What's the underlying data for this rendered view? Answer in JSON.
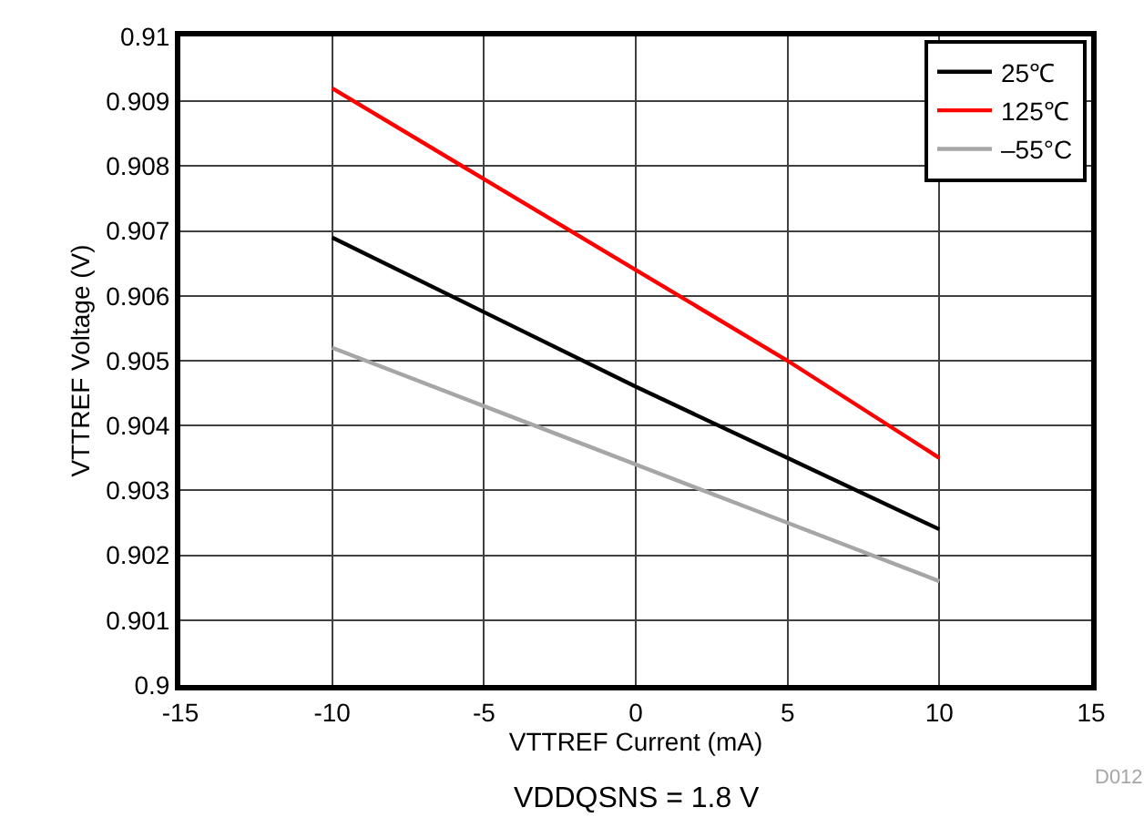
{
  "chart_data": {
    "type": "line",
    "xlabel": "VTTREF Current (mA)",
    "ylabel": "VTTREF Voltage (V)",
    "x": [
      -10,
      -5,
      0,
      5,
      10
    ],
    "series": [
      {
        "name": "25℃",
        "color": "#000000",
        "values": [
          0.9069,
          0.90575,
          0.9046,
          0.9035,
          0.9024
        ]
      },
      {
        "name": "125℃",
        "color": "#ff0000",
        "values": [
          0.9092,
          0.9078,
          0.9064,
          0.905,
          0.9035
        ]
      },
      {
        "name": "–55°C",
        "color": "#a6a6a6",
        "values": [
          0.9052,
          0.9043,
          0.9034,
          0.9025,
          0.9016
        ]
      }
    ],
    "xlim": [
      -15,
      15
    ],
    "xticks": [
      -15,
      -10,
      -5,
      0,
      5,
      10,
      15
    ],
    "ylim": [
      0.9,
      0.91
    ],
    "yticks": [
      0.9,
      0.901,
      0.902,
      0.903,
      0.904,
      0.905,
      0.906,
      0.907,
      0.908,
      0.909,
      0.91
    ],
    "grid": true,
    "legend": "top right",
    "marker": "none",
    "line_style": "solid",
    "annotations": [
      "D012",
      "VDDQSNS = 1.8 V"
    ]
  }
}
